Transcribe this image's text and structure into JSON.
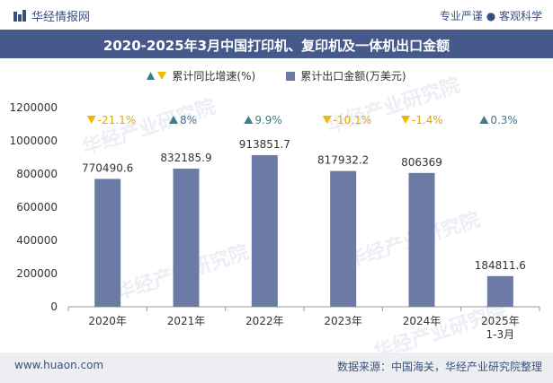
{
  "header": {
    "logo_text": "华经情报网",
    "tagline": "专业严谨 ● 客观科学"
  },
  "title": "2020-2025年3月中国打印机、复印机及一体机出口金额",
  "legend": {
    "growth_label": "累计同比增速(%)",
    "amount_label": "累计出口金额(万美元)"
  },
  "watermark": "华经产业研究院",
  "footer": {
    "url": "www.huaon.com",
    "source": "数据来源：中国海关，华经产业研究院整理"
  },
  "colors": {
    "bar": "#6b7ba5",
    "up": "#3e7b8c",
    "down": "#f0b800",
    "down_text": "#e0a800"
  },
  "chart_data": {
    "type": "bar",
    "categories": [
      "2020年",
      "2021年",
      "2022年",
      "2023年",
      "2024年",
      "2025年\n1-3月"
    ],
    "series": [
      {
        "name": "累计出口金额(万美元)",
        "values": [
          770490.6,
          832185.9,
          913851.7,
          817932.2,
          806369,
          184811.6
        ],
        "labels": [
          "770490.6",
          "832185.9",
          "913851.7",
          "817932.2",
          "806369",
          "184811.6"
        ]
      },
      {
        "name": "累计同比增速(%)",
        "values": [
          -21.1,
          8,
          9.9,
          -10.1,
          -1.4,
          0.3
        ],
        "labels": [
          "-21.1%",
          "8%",
          "9.9%",
          "-10.1%",
          "-1.4%",
          "0.3%"
        ]
      }
    ],
    "yticks": [
      "0",
      "200000",
      "400000",
      "600000",
      "800000",
      "1000000",
      "1200000"
    ],
    "ylim": [
      0,
      1200000
    ],
    "grid": false
  }
}
